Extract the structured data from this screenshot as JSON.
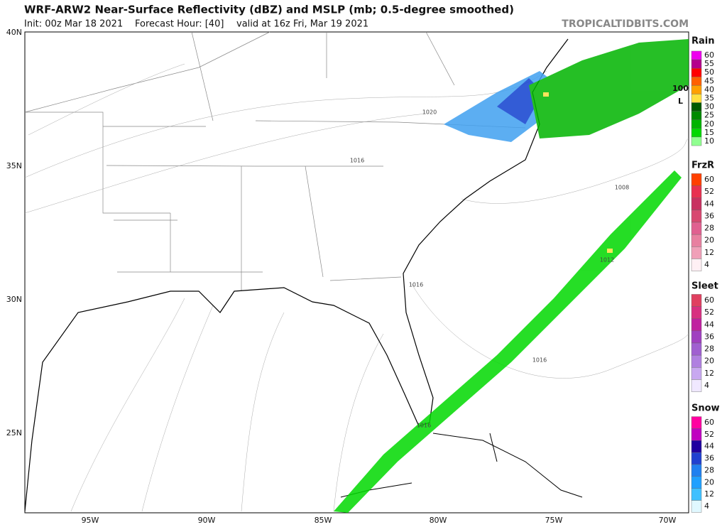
{
  "header": {
    "title": "WRF-ARW2 Near-Surface Reflectivity (dBZ) and MSLP (mb; 0.5-degree smoothed)",
    "init": "Init: 00z Mar 18 2021",
    "forecast_hour": "Forecast Hour: [40]",
    "valid": "valid at 16z Fri, Mar 19 2021",
    "site": "TROPICALTIDBITS.COM"
  },
  "map": {
    "lat_labels": [
      "40N",
      "35N",
      "30N",
      "25N"
    ],
    "lon_labels": [
      "95W",
      "90W",
      "85W",
      "80W",
      "75W",
      "70W"
    ],
    "isobar_labels": [
      "1020",
      "1016",
      "1016",
      "1008",
      "1012",
      "1016",
      "1016"
    ],
    "low_pressure": "100",
    "low_label": "L"
  },
  "legend": [
    {
      "title": "Rain",
      "levels": [
        {
          "label": "60",
          "color": "#ee00ee"
        },
        {
          "label": "55",
          "color": "#b4008c"
        },
        {
          "label": "50",
          "color": "#ff0000"
        },
        {
          "label": "45",
          "color": "#ff6000"
        },
        {
          "label": "40",
          "color": "#ffa000"
        },
        {
          "label": "35",
          "color": "#ffe040"
        },
        {
          "label": "30",
          "color": "#005a00"
        },
        {
          "label": "25",
          "color": "#008a00"
        },
        {
          "label": "20",
          "color": "#00b400"
        },
        {
          "label": "15",
          "color": "#00d800"
        },
        {
          "label": "10",
          "color": "#90ff90"
        }
      ]
    },
    {
      "title": "FrzR",
      "levels": [
        {
          "label": "60",
          "color": "#ff4000"
        },
        {
          "label": "52",
          "color": "#e83050"
        },
        {
          "label": "44",
          "color": "#c83060"
        },
        {
          "label": "36",
          "color": "#d84870"
        },
        {
          "label": "28",
          "color": "#e06090"
        },
        {
          "label": "20",
          "color": "#e880a0"
        },
        {
          "label": "12",
          "color": "#f0a0b8"
        },
        {
          "label": "4",
          "color": "#fff0f4"
        }
      ]
    },
    {
      "title": "Sleet",
      "levels": [
        {
          "label": "60",
          "color": "#e04060"
        },
        {
          "label": "52",
          "color": "#d83080"
        },
        {
          "label": "44",
          "color": "#c020a0"
        },
        {
          "label": "36",
          "color": "#a040c0"
        },
        {
          "label": "28",
          "color": "#a060d0"
        },
        {
          "label": "20",
          "color": "#b080e0"
        },
        {
          "label": "12",
          "color": "#c8a8f0"
        },
        {
          "label": "4",
          "color": "#f0e8ff"
        }
      ]
    },
    {
      "title": "Snow",
      "levels": [
        {
          "label": "60",
          "color": "#ff00a0"
        },
        {
          "label": "52",
          "color": "#c000c0"
        },
        {
          "label": "44",
          "color": "#2000a0"
        },
        {
          "label": "36",
          "color": "#2040d0"
        },
        {
          "label": "28",
          "color": "#2080f0"
        },
        {
          "label": "20",
          "color": "#20a0ff"
        },
        {
          "label": "12",
          "color": "#40c0ff"
        },
        {
          "label": "4",
          "color": "#e0f8ff"
        }
      ]
    }
  ]
}
